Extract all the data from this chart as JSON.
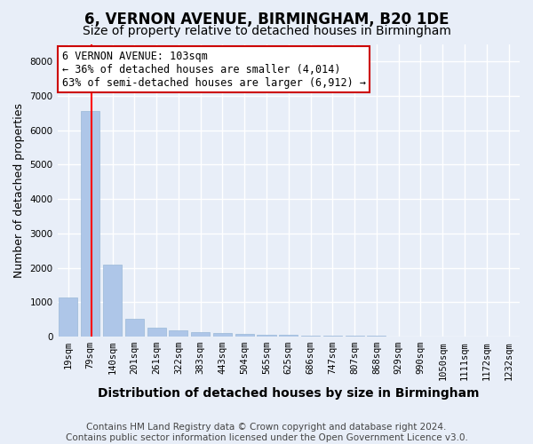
{
  "title": "6, VERNON AVENUE, BIRMINGHAM, B20 1DE",
  "subtitle": "Size of property relative to detached houses in Birmingham",
  "xlabel": "Distribution of detached houses by size in Birmingham",
  "ylabel": "Number of detached properties",
  "categories": [
    "19sqm",
    "79sqm",
    "140sqm",
    "201sqm",
    "261sqm",
    "322sqm",
    "383sqm",
    "443sqm",
    "504sqm",
    "565sqm",
    "625sqm",
    "686sqm",
    "747sqm",
    "807sqm",
    "868sqm",
    "929sqm",
    "990sqm",
    "1050sqm",
    "1111sqm",
    "1172sqm",
    "1232sqm"
  ],
  "values": [
    1150,
    6550,
    2100,
    530,
    260,
    170,
    130,
    100,
    80,
    60,
    50,
    30,
    25,
    20,
    15,
    12,
    10,
    8,
    6,
    5,
    3
  ],
  "bar_color": "#aec6e8",
  "bar_edge_color": "#9ab8d8",
  "red_line_x": 1.05,
  "ylim": [
    0,
    8500
  ],
  "yticks": [
    0,
    1000,
    2000,
    3000,
    4000,
    5000,
    6000,
    7000,
    8000
  ],
  "annotation_line1": "6 VERNON AVENUE: 103sqm",
  "annotation_line2": "← 36% of detached houses are smaller (4,014)",
  "annotation_line3": "63% of semi-detached houses are larger (6,912) →",
  "annotation_box_color": "#ffffff",
  "annotation_box_edge_color": "#cc0000",
  "footnote": "Contains HM Land Registry data © Crown copyright and database right 2024.\nContains public sector information licensed under the Open Government Licence v3.0.",
  "bg_color": "#e8eef8",
  "grid_color": "#ffffff",
  "title_fontsize": 12,
  "subtitle_fontsize": 10,
  "xlabel_fontsize": 10,
  "ylabel_fontsize": 9,
  "tick_fontsize": 7.5,
  "annotation_fontsize": 8.5,
  "footnote_fontsize": 7.5
}
